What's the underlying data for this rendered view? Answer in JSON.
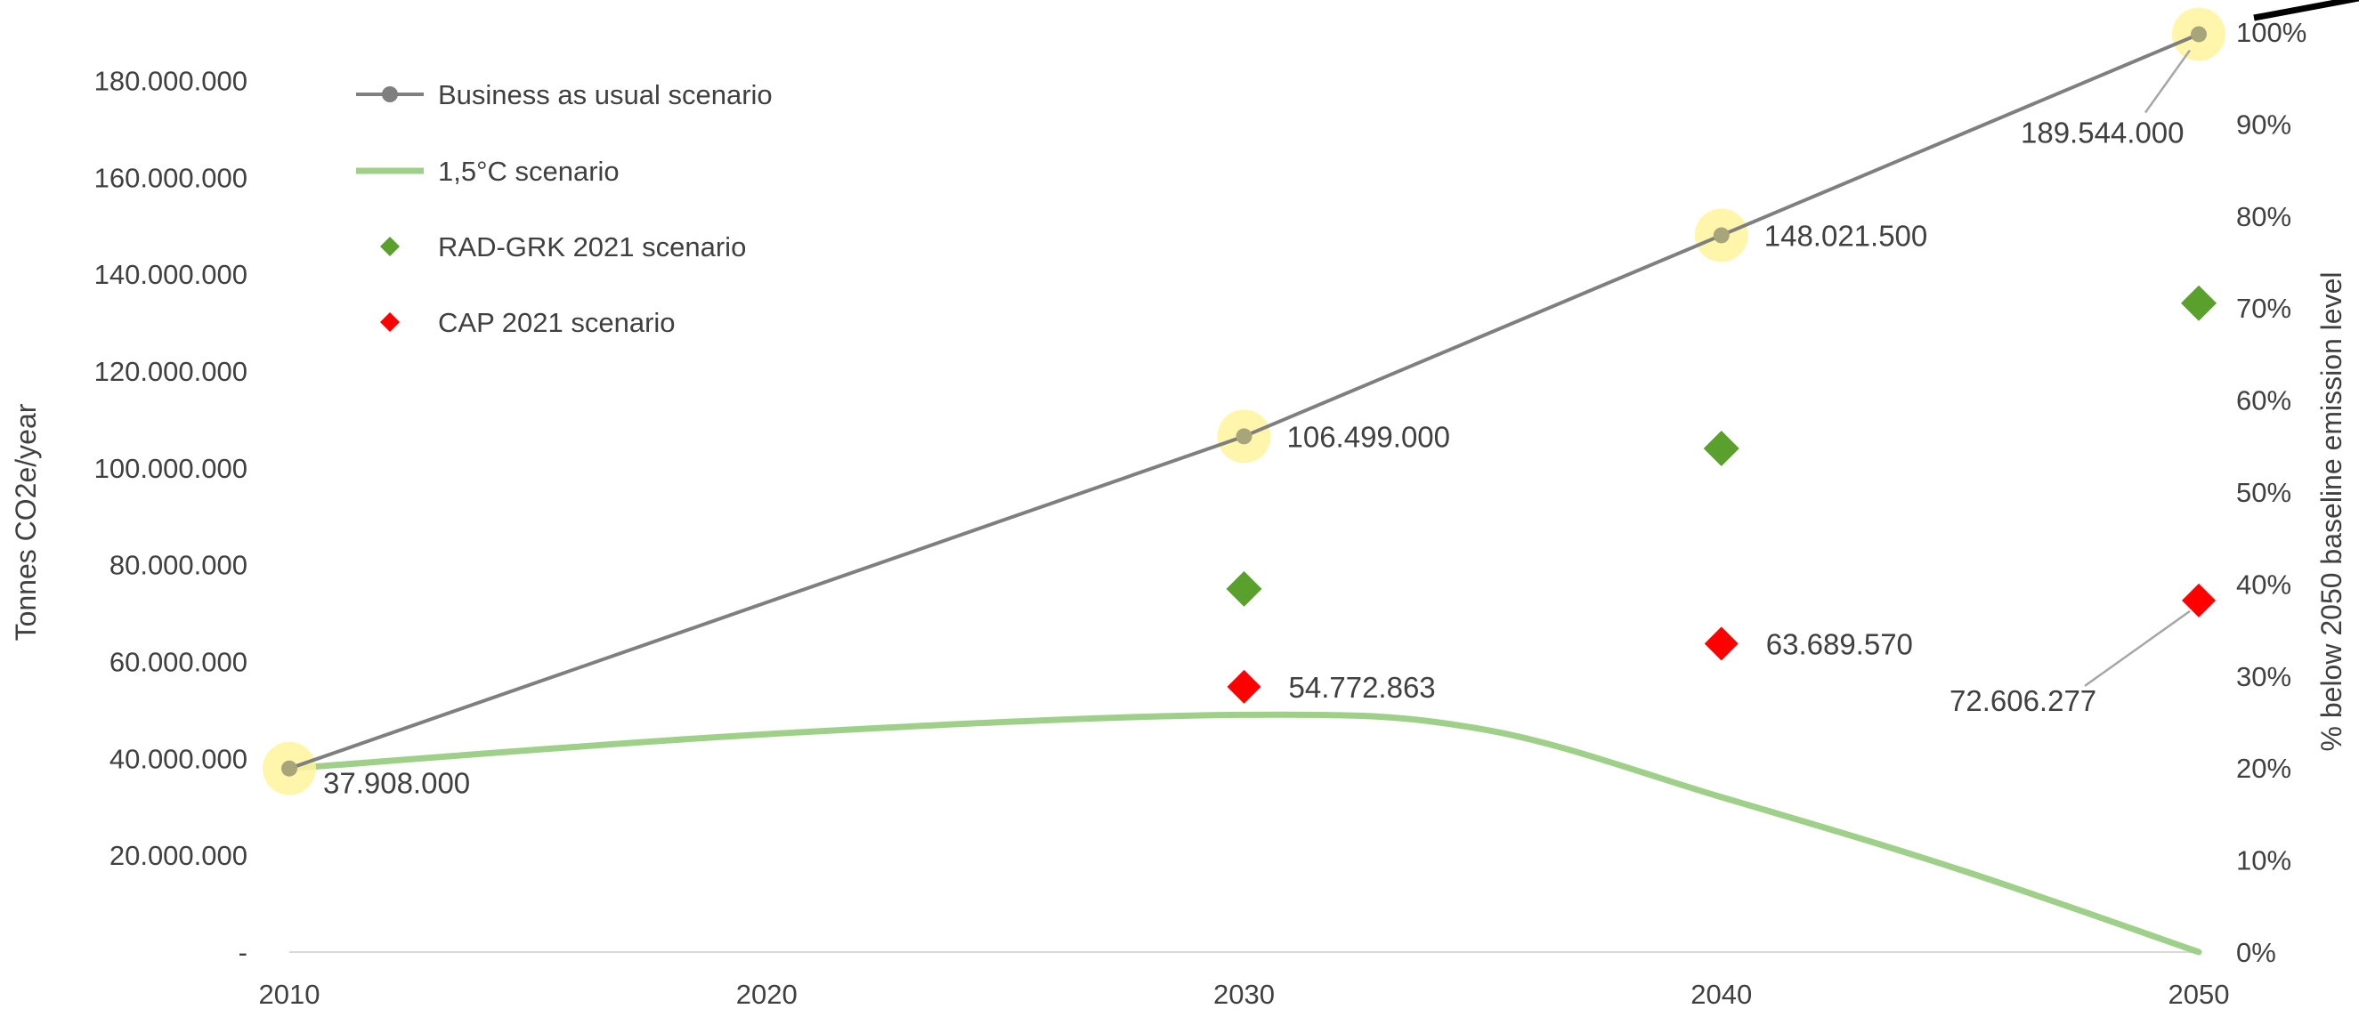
{
  "chart_data": {
    "type": "line",
    "x": [
      2010,
      2020,
      2030,
      2040,
      2050
    ],
    "xlim": [
      2010,
      2050
    ],
    "ylim": [
      0,
      190000000
    ],
    "y2lim": [
      0,
      100
    ],
    "ylabel": "Tonnes CO2e/year",
    "y2label": "% below 2050 baseline emission level",
    "y_ticks": [
      {
        "value": 0,
        "label": "-"
      },
      {
        "value": 20000000,
        "label": "20.000.000"
      },
      {
        "value": 40000000,
        "label": "40.000.000"
      },
      {
        "value": 60000000,
        "label": "60.000.000"
      },
      {
        "value": 80000000,
        "label": "80.000.000"
      },
      {
        "value": 100000000,
        "label": "100.000.000"
      },
      {
        "value": 120000000,
        "label": "120.000.000"
      },
      {
        "value": 140000000,
        "label": "140.000.000"
      },
      {
        "value": 160000000,
        "label": "160.000.000"
      },
      {
        "value": 180000000,
        "label": "180.000.000"
      }
    ],
    "y2_ticks": [
      {
        "value": 0,
        "label": "0%"
      },
      {
        "value": 10,
        "label": "10%"
      },
      {
        "value": 20,
        "label": "20%"
      },
      {
        "value": 30,
        "label": "30%"
      },
      {
        "value": 40,
        "label": "40%"
      },
      {
        "value": 50,
        "label": "50%"
      },
      {
        "value": 60,
        "label": "60%"
      },
      {
        "value": 70,
        "label": "70%"
      },
      {
        "value": 80,
        "label": "80%"
      },
      {
        "value": 90,
        "label": "90%"
      },
      {
        "value": 100,
        "label": "100%"
      }
    ],
    "x_tick_labels": [
      "2010",
      "2020",
      "2030",
      "2040",
      "2050"
    ],
    "grid": false,
    "legend_position": "top-left",
    "series": [
      {
        "name": "Business as usual scenario",
        "kind": "line-markers",
        "color": "#7f7f7f",
        "points": [
          [
            2010,
            37908000
          ],
          [
            2030,
            106499000
          ],
          [
            2040,
            148021500
          ],
          [
            2050,
            189544000
          ]
        ],
        "data_labels": [
          "37.908.000",
          "106.499.000",
          "148.021.500",
          "189.544.000"
        ],
        "highlight_color": "#fff59d"
      },
      {
        "name": "1,5°C scenario",
        "kind": "smooth-line",
        "color": "#9fd08a",
        "points": [
          [
            2010,
            37908000
          ],
          [
            2020,
            45000000
          ],
          [
            2030,
            49000000
          ],
          [
            2035,
            46000000
          ],
          [
            2040,
            32000000
          ],
          [
            2045,
            17000000
          ],
          [
            2050,
            0
          ]
        ]
      },
      {
        "name": "RAD-GRK 2021 scenario",
        "kind": "markers",
        "color": "#5aa02c",
        "points": [
          [
            2030,
            75000000
          ],
          [
            2040,
            104000000
          ],
          [
            2050,
            134000000
          ]
        ]
      },
      {
        "name": "CAP 2021 scenario",
        "kind": "markers",
        "color": "#ff0000",
        "points": [
          [
            2030,
            54772863
          ],
          [
            2040,
            63689570
          ],
          [
            2050,
            72606277
          ]
        ],
        "data_labels": [
          "54.772.863",
          "63.689.570",
          "72.606.277"
        ]
      }
    ]
  }
}
